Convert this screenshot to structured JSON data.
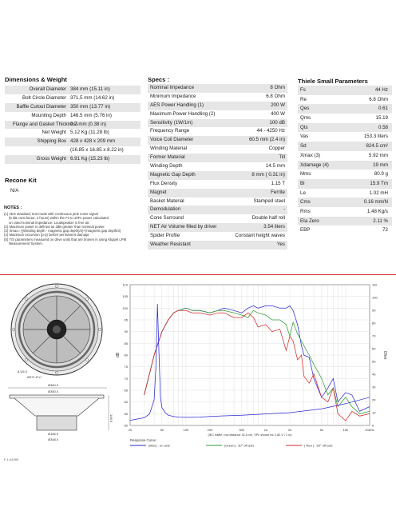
{
  "dimensions": {
    "title": "Dimensions & Weight",
    "rows": [
      {
        "label": "Overall Diameter",
        "value": "384 mm (15.11 in)"
      },
      {
        "label": "Bolt Circle Diameter",
        "value": "371.5 mm (14.62 in)"
      },
      {
        "label": "Baffle Cutout Diameter",
        "value": "350 mm (13.77 in)"
      },
      {
        "label": "Mounting Depth",
        "value": "146.5 mm (5.76 in)"
      },
      {
        "label": "Flange and Gasket Thickness",
        "value": "9.7 mm (0.38 in)"
      },
      {
        "label": "Net Weight",
        "value": "5.12 Kg (11.28 lb)"
      },
      {
        "label": "Shipping Box",
        "value": "428 x 428 x 209 mm"
      },
      {
        "label": "",
        "value": "(16.85 x 16.85 x 8.22 in)"
      },
      {
        "label": "Gross Weight",
        "value": "6.91 Kg (15.23 lb)"
      }
    ]
  },
  "recone": {
    "title": "Recone Kit",
    "value": "N/A"
  },
  "notes": {
    "title": "NOTES :",
    "lines": [
      "(1) AES standard, test mode with continuous pink noise signal",
      "     (6 dB crest factor, 2 hours) within the Fs to 10Fs power calculated",
      "     on rated nominal impedance. Loudspeaker in free air.",
      "(2) Maximum power is defined as 3dB greater than nominal power.",
      "(3) Xmax= ((Winding depth - magnetic gap depth)/2)+(magnetic gap depth/3)",
      "(4) Maximum excursion (p-p) before permanent damage",
      "(5) T/S parameters measured on drive units that are broken in using Klippel LPM",
      "     Measurement System."
    ]
  },
  "specs": {
    "title": "Specs :",
    "rows": [
      {
        "label": "Nominal Impedance",
        "value": "8 Ohm"
      },
      {
        "label": "Minimum Impedance",
        "value": "6.8 Ohm"
      },
      {
        "label": "AES Power Handling (1)",
        "value": "200 W"
      },
      {
        "label": "Maximum Power Handling (2)",
        "value": "400 W"
      },
      {
        "label": "Sensitivity (1W/1m)",
        "value": "100 dB"
      },
      {
        "label": "Frequency Range",
        "value": "44 - 4250 Hz"
      },
      {
        "label": "Voice Coil Diameter",
        "value": "60.5 mm (2.4 in)"
      },
      {
        "label": "Winding Material",
        "value": "Copper"
      },
      {
        "label": "Former Material",
        "value": "Till"
      },
      {
        "label": "Winding Depth",
        "value": "14.5 mm"
      },
      {
        "label": "Magnetic Gap Depth",
        "value": "8 mm ( 0.31 in)"
      },
      {
        "label": "Flux Density",
        "value": "1.15 T"
      },
      {
        "label": "Magnet",
        "value": "Ferrite"
      },
      {
        "label": "Basket Material",
        "value": "Stamped steel"
      },
      {
        "label": "Demodulation",
        "value": "-"
      },
      {
        "label": "Cone Surround",
        "value": "Double half roll"
      },
      {
        "label": "NET Air Volume filled by driver",
        "value": "3.54 liters"
      },
      {
        "label": "Spider Profile",
        "value": "Constant height waves"
      },
      {
        "label": "Weather Resistant",
        "value": "Yes"
      }
    ]
  },
  "thiele": {
    "title": "Thiele Small Parameters",
    "rows": [
      {
        "label": "Fs",
        "value": "44 Hz"
      },
      {
        "label": "Re",
        "value": "6.8 Ohm"
      },
      {
        "label": "Qes",
        "value": "0.61"
      },
      {
        "label": "Qms",
        "value": "15.19"
      },
      {
        "label": "Qts",
        "value": "0.58"
      },
      {
        "label": "Vas",
        "value": "153.3 liters"
      },
      {
        "label": "Sd",
        "value": "824.5 cm²"
      },
      {
        "label": "Xmax (3)",
        "value": "5.92 mm"
      },
      {
        "label": "Xdamage (4)",
        "value": "19 mm"
      },
      {
        "label": "Mms",
        "value": "80.9 g"
      },
      {
        "label": "Bl",
        "value": "15.9 Tm"
      },
      {
        "label": "Le",
        "value": "1.02 mH"
      },
      {
        "label": "Cms",
        "value": "0.16 mm/N"
      },
      {
        "label": "Rms",
        "value": "1.48 Kg/s"
      },
      {
        "label": "Eta Zero",
        "value": "2.11 %"
      },
      {
        "label": "EBP",
        "value": "72"
      }
    ]
  },
  "drawing": {
    "label_bolt": "8-Ù6.3",
    "label_bolt_circle": "Ø371.5°c°",
    "label_overall": "Ø384.0",
    "label_baffle": "Ø350.0",
    "label_depth": "146.5",
    "label_magnet": "Ø156.0",
    "label_basket": "Ø348.0",
    "footer": "F-1-A1999"
  },
  "chart_data": {
    "type": "line",
    "ylabel": "dB",
    "y2label": "Ohm",
    "xscale": "log",
    "xlim": [
      20,
      20000
    ],
    "ylim": [
      50,
      110
    ],
    "y2lim": [
      0,
      110
    ],
    "x_ticks": [
      "20",
      "50",
      "100",
      "200",
      "500",
      "1k",
      "2k",
      "5k",
      "10k",
      "20kHz"
    ],
    "x_tick_values": [
      20,
      50,
      100,
      200,
      500,
      1000,
      2000,
      5000,
      10000,
      20000
    ],
    "y_ticks": [
      50,
      55,
      60,
      65,
      70,
      75,
      80,
      85,
      90,
      95,
      100,
      105,
      110
    ],
    "y2_ticks": [
      0,
      10,
      20,
      30,
      40,
      50,
      60,
      70,
      80,
      90,
      100,
      110
    ],
    "caption": "(IEC baffle, mic.distance 31.6 cm, SPL shown for 2.83 V / 1 m)",
    "legend_title": "Response Curve :",
    "series": [
      {
        "name": "(Blue) : on axis",
        "color": "#2a2ad6",
        "x": [
          30,
          40,
          50,
          60,
          70,
          80,
          100,
          120,
          150,
          200,
          250,
          300,
          400,
          500,
          600,
          700,
          800,
          1000,
          1200,
          1500,
          1800,
          2000,
          2200,
          2500,
          2800,
          3000,
          3500,
          4000,
          5000,
          6000,
          7000,
          8000,
          10000,
          12000,
          15000,
          20000
        ],
        "y": [
          63,
          80,
          90,
          95,
          98,
          99,
          100,
          99,
          99,
          98,
          99,
          100,
          99,
          98,
          100,
          101,
          100,
          101,
          101,
          100,
          100,
          101,
          99,
          93,
          84,
          80,
          79,
          70,
          62,
          66,
          70,
          60,
          64,
          63,
          56,
          58
        ]
      },
      {
        "name": "(Green) : 30° off-axis",
        "color": "#2e9e2e",
        "x": [
          30,
          40,
          50,
          60,
          70,
          80,
          100,
          120,
          150,
          200,
          250,
          300,
          400,
          500,
          600,
          700,
          800,
          1000,
          1200,
          1500,
          1800,
          2000,
          2200,
          2500,
          2800,
          3000,
          3500,
          4000,
          5000,
          6000,
          7000,
          8000,
          10000,
          12000,
          15000,
          20000
        ],
        "y": [
          63,
          80,
          90,
          95,
          98,
          99,
          100,
          99,
          99,
          98,
          99,
          99,
          98,
          97,
          96,
          99,
          98,
          97,
          95,
          95,
          93,
          88,
          94,
          89,
          86,
          84,
          80,
          76,
          70,
          63,
          66,
          58,
          62,
          58,
          55,
          56
        ]
      },
      {
        "name": "( Red ) : 60° off-axis",
        "color": "#d62a2a",
        "x": [
          30,
          40,
          50,
          60,
          70,
          80,
          100,
          120,
          150,
          200,
          250,
          300,
          400,
          500,
          600,
          700,
          800,
          1000,
          1200,
          1500,
          1800,
          2000,
          2200,
          2500,
          2800,
          3000,
          3500,
          4000,
          5000,
          6000,
          7000,
          8000,
          10000,
          12000,
          15000,
          20000
        ],
        "y": [
          63,
          80,
          90,
          95,
          98,
          99,
          99,
          98,
          98,
          97,
          98,
          98,
          96,
          96,
          98,
          96,
          92,
          93,
          90,
          91,
          82,
          88,
          86,
          78,
          80,
          71,
          68,
          72,
          62,
          60,
          66,
          55,
          52,
          56,
          54,
          55
        ]
      },
      {
        "name": "Impedance",
        "color": "#2a2ad6",
        "x": [
          20,
          30,
          35,
          40,
          42,
          44,
          46,
          48,
          50,
          55,
          60,
          70,
          80,
          100,
          150,
          200,
          300,
          500,
          1000,
          2000,
          5000,
          10000,
          20000
        ],
        "y": [
          4,
          6,
          9,
          20,
          45,
          95,
          55,
          22,
          14,
          10,
          8,
          7,
          6.5,
          6.3,
          6.5,
          7,
          7.5,
          8,
          9,
          10,
          13,
          17,
          22
        ]
      }
    ]
  }
}
